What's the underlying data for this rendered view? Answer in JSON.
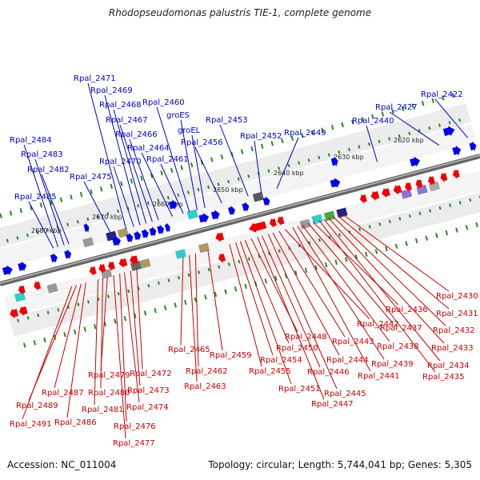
{
  "title": "Rhodopseudomonas palustris TIE-1, complete genome",
  "accession": "Accession: NC_011004",
  "topology": "Topology: circular; Length: 5,744,041 bp; Genes: 5,305",
  "colors": {
    "forward_strand": "#0000ee",
    "reverse_strand": "#ee0000",
    "backbone": "#888888",
    "tick": "#228b22",
    "forward_label": "#0000cc",
    "reverse_label": "#cc0000"
  },
  "kbp_labels": [
    "2620 kbp",
    "2630 kbp",
    "2640 kbp",
    "2650 kbp",
    "2660 kbp",
    "2670 kbp",
    "2680 kbp"
  ],
  "forward_genes": [
    "Rpal_2422",
    "Rpal_2427",
    "Rpal_2440",
    "Rpal_2449",
    "Rpal_2452",
    "Rpal_2453",
    "Rpal_2456",
    "groEL",
    "groES",
    "Rpal_2460",
    "Rpal_2461",
    "Rpal_2464",
    "Rpal_2466",
    "Rpal_2467",
    "Rpal_2468",
    "Rpal_2469",
    "Rpal_2470",
    "Rpal_2471",
    "Rpal_2475",
    "Rpal_2482",
    "Rpal_2483",
    "Rpal_2484",
    "Rpal_2485"
  ],
  "reverse_genes": [
    "Rpal_2430",
    "Rpal_2431",
    "Rpal_2432",
    "Rpal_2433",
    "Rpal_2434",
    "Rpal_2435",
    "Rpal_2436",
    "Rpal_2437",
    "Rpal_2438",
    "Rpal_2439",
    "Rpal_2441",
    "Rpal_2442",
    "Rpal_2443",
    "Rpal_2444",
    "Rpal_2445",
    "Rpal_2446",
    "Rpal_2447",
    "Rpal_2448",
    "Rpal_2450",
    "Rpal_2451",
    "Rpal_2454",
    "Rpal_2455",
    "Rpal_2459",
    "Rpal_2462",
    "Rpal_2463",
    "Rpal_2465",
    "Rpal_2472",
    "Rpal_2473",
    "Rpal_2474",
    "Rpal_2476",
    "Rpal_2477",
    "Rpal_2479",
    "Rpal_2480",
    "Rpal_2481",
    "Rpal_2486",
    "Rpal_2487",
    "Rpal_2489",
    "Rpal_2491"
  ]
}
